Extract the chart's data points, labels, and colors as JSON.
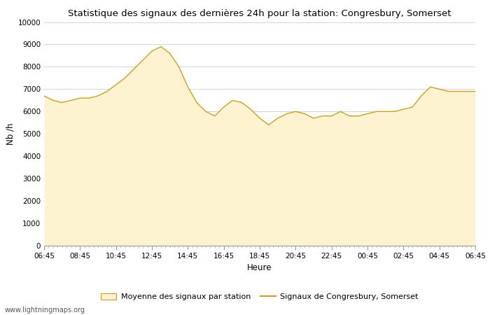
{
  "title": "Statistique des signaux des dernières 24h pour la station: Congresbury, Somerset",
  "xlabel": "Heure",
  "ylabel": "Nb /h",
  "xlim": [
    0,
    24
  ],
  "ylim": [
    0,
    10000
  ],
  "yticks": [
    0,
    1000,
    2000,
    3000,
    4000,
    5000,
    6000,
    7000,
    8000,
    9000,
    10000
  ],
  "xtick_labels": [
    "06:45",
    "08:45",
    "10:45",
    "12:45",
    "14:45",
    "16:45",
    "18:45",
    "20:45",
    "22:45",
    "00:45",
    "02:45",
    "04:45",
    "06:45"
  ],
  "fill_color": "#fdf3d0",
  "line_color": "#c8a020",
  "bg_color": "#ffffff",
  "watermark": "www.lightningmaps.org",
  "legend_fill_label": "Moyenne des signaux par station",
  "legend_line_label": "Signaux de Congresbury, Somerset",
  "x": [
    0,
    0.5,
    1,
    1.5,
    2,
    2.5,
    3,
    3.5,
    4,
    4.5,
    5,
    5.5,
    6,
    6.5,
    7,
    7.5,
    8,
    8.5,
    9,
    9.5,
    10,
    10.5,
    11,
    11.5,
    12,
    12.5,
    13,
    13.5,
    14,
    14.5,
    15,
    15.5,
    16,
    16.5,
    17,
    17.5,
    18,
    18.5,
    19,
    19.5,
    20,
    20.5,
    21,
    21.5,
    22,
    22.5,
    23,
    23.5,
    24
  ],
  "y_fill": [
    6700,
    6500,
    6400,
    6500,
    6600,
    6600,
    6700,
    6900,
    7200,
    7500,
    7900,
    8300,
    8700,
    8900,
    8600,
    8000,
    7100,
    6400,
    6000,
    5800,
    6200,
    6500,
    6400,
    6100,
    5700,
    5400,
    5700,
    5900,
    6000,
    5900,
    5700,
    5800,
    5800,
    6000,
    5800,
    5800,
    5900,
    6000,
    6000,
    6000,
    6100,
    6200,
    6700,
    7100,
    7000,
    6900,
    6900,
    6900,
    6900
  ],
  "y_line": [
    6700,
    6500,
    6400,
    6500,
    6600,
    6600,
    6700,
    6900,
    7200,
    7500,
    7900,
    8300,
    8700,
    8900,
    8600,
    8000,
    7100,
    6400,
    6000,
    5800,
    6200,
    6500,
    6400,
    6100,
    5700,
    5400,
    5700,
    5900,
    6000,
    5900,
    5700,
    5800,
    5800,
    6000,
    5800,
    5800,
    5900,
    6000,
    6000,
    6000,
    6100,
    6200,
    6700,
    7100,
    7000,
    6900,
    6900,
    6900,
    6900
  ]
}
